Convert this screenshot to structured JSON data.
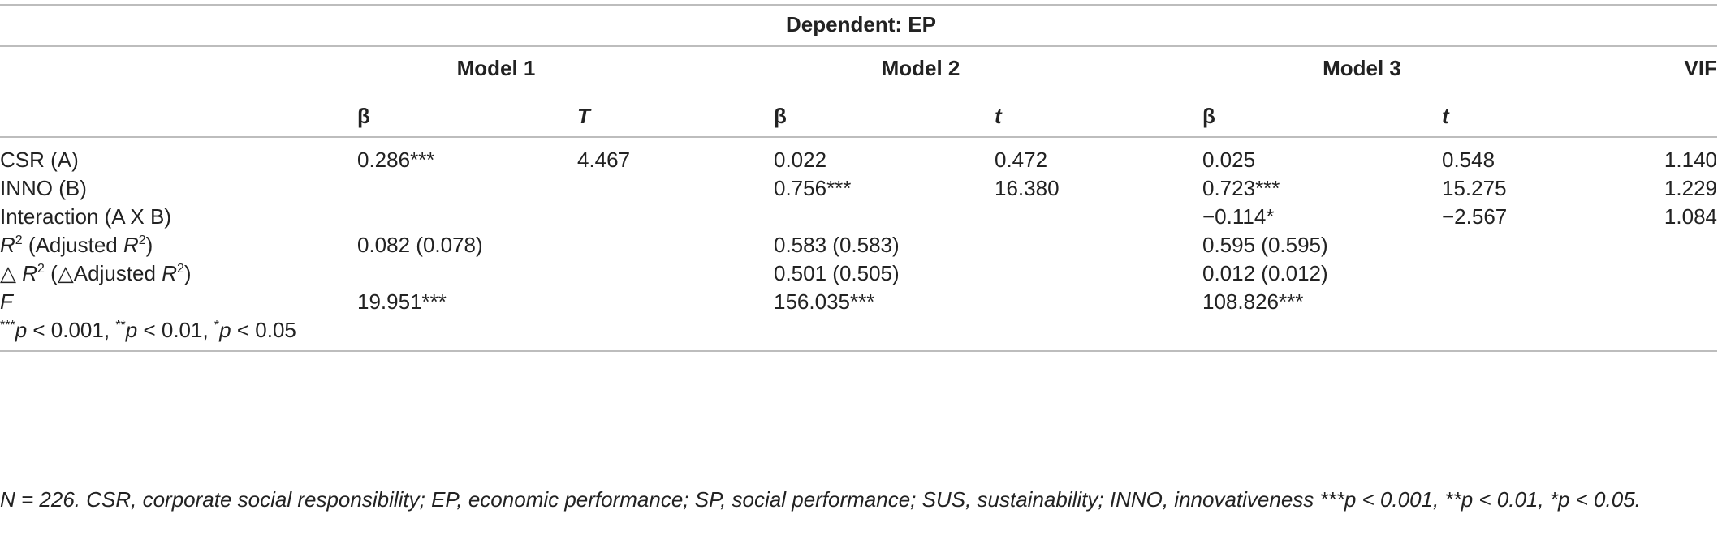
{
  "header": {
    "dependent": "Dependent: EP",
    "models": [
      "Model 1",
      "Model 2",
      "Model 3"
    ],
    "vif": "VIF",
    "subheads": [
      "β",
      "T",
      "β",
      "t",
      "β",
      "t"
    ]
  },
  "rows": [
    {
      "label": "CSR (A)",
      "cells": [
        "0.286***",
        "4.467",
        "0.022",
        "0.472",
        "0.025",
        "0.548"
      ],
      "vif": "1.140"
    },
    {
      "label": "INNO (B)",
      "cells": [
        "",
        "",
        "0.756***",
        "16.380",
        "0.723***",
        "15.275"
      ],
      "vif": "1.229"
    },
    {
      "label": "Interaction (A X B)",
      "cells": [
        "",
        "",
        "",
        "",
        "−0.114*",
        "−2.567"
      ],
      "vif": "1.084"
    },
    {
      "label_parts": [
        "R",
        "2",
        " (Adjusted ",
        "R",
        "2",
        ")"
      ],
      "cells": [
        "0.082 (0.078)",
        "0.583 (0.583)",
        "0.595 (0.595)"
      ]
    },
    {
      "label_parts": [
        "△ ",
        "R",
        "2",
        " (△Adjusted ",
        "R",
        "2",
        ")"
      ],
      "cells": [
        "",
        "0.501 (0.505)",
        "0.012 (0.012)"
      ]
    },
    {
      "label": "F",
      "cells": [
        "19.951***",
        "156.035***",
        "108.826***"
      ]
    }
  ],
  "sig_note": {
    "stars": [
      "***",
      "**",
      "*"
    ],
    "p": "p",
    "parts": [
      " < 0.001, ",
      " < 0.01, ",
      " < 0.05"
    ]
  },
  "footnote": "N = 226. CSR, corporate social responsibility; EP, economic performance; SP, social performance; SUS, sustainability; INNO, innovativeness ***p < 0.001, **p < 0.01, *p < 0.05."
}
